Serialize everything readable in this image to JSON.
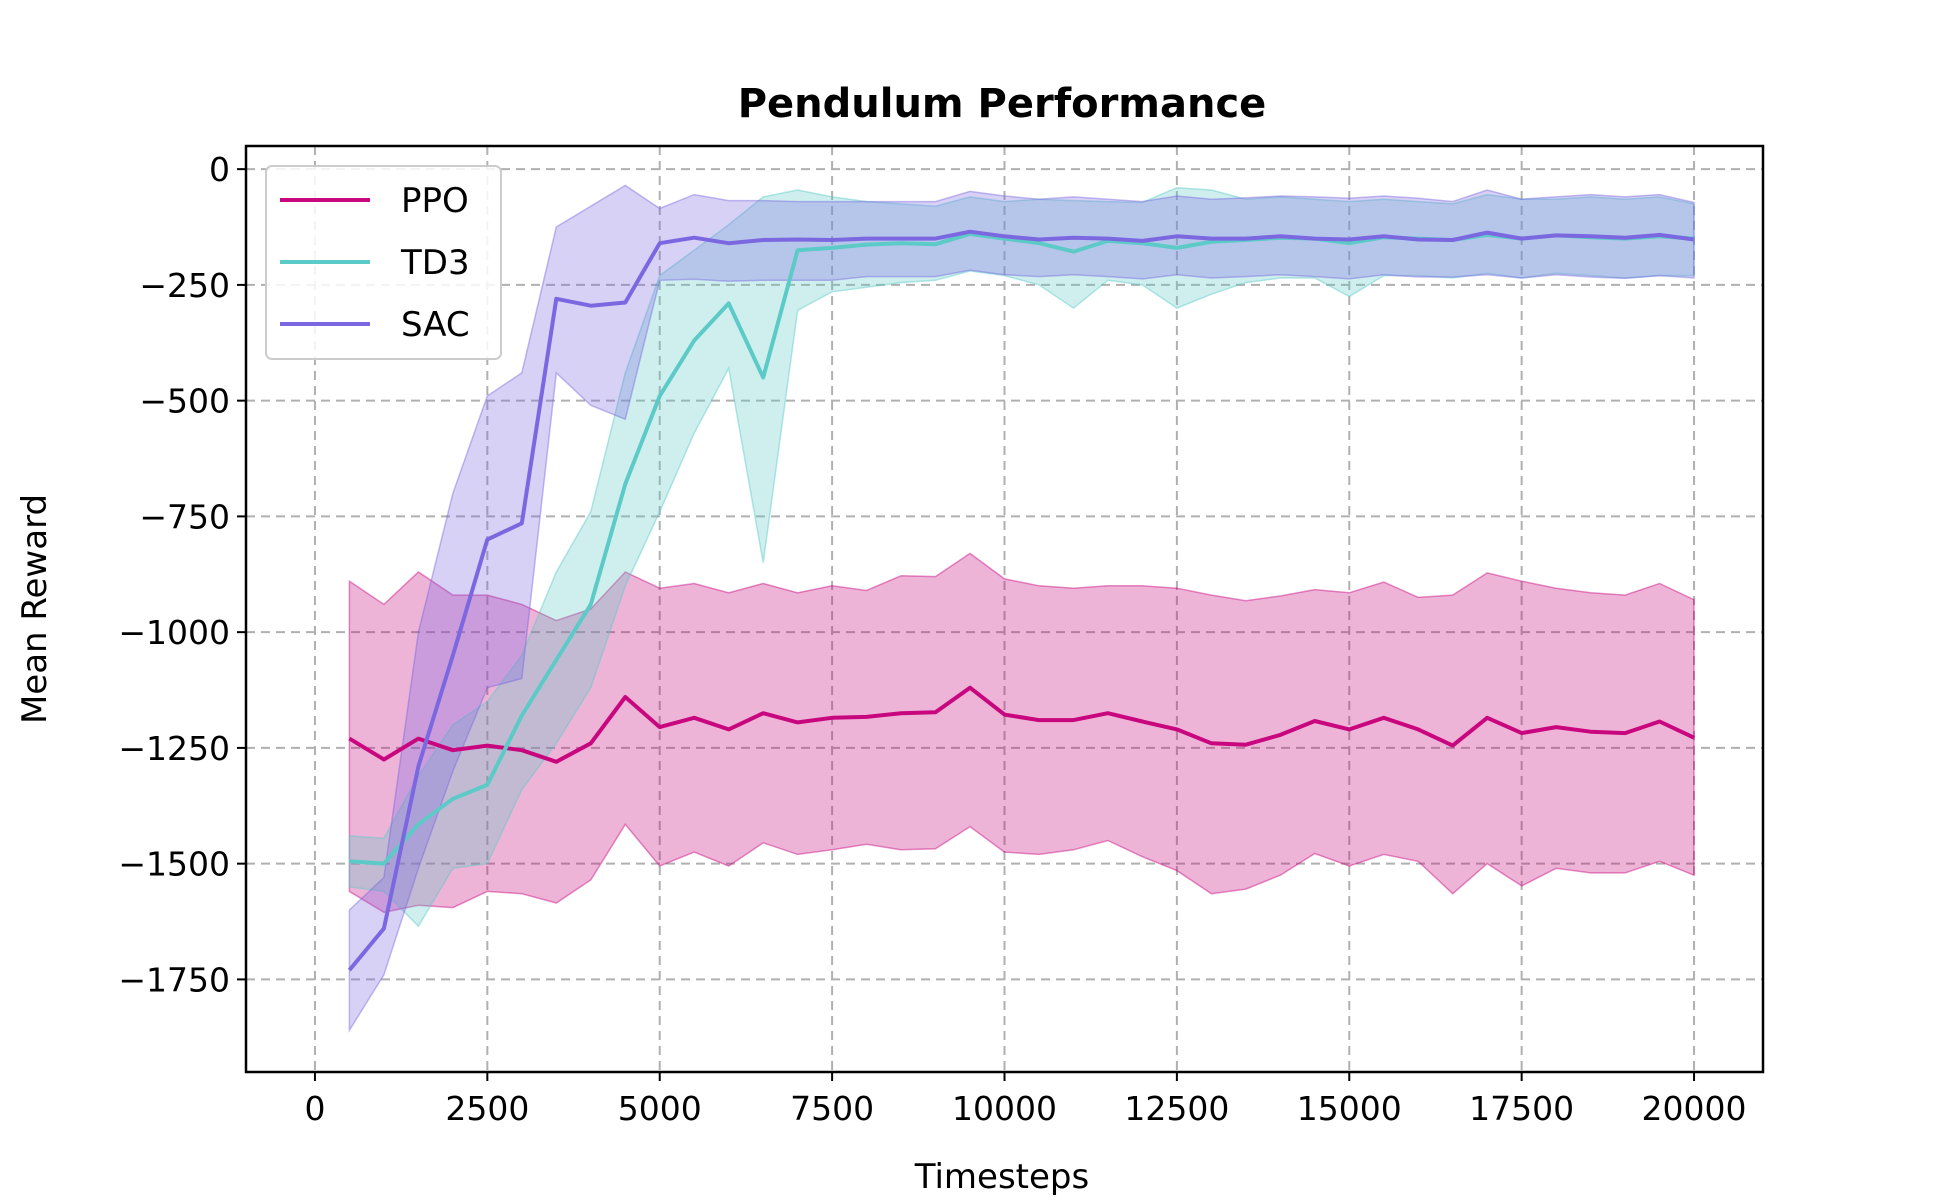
{
  "chart_data": {
    "type": "line",
    "title": "Pendulum Performance",
    "xlabel": "Timesteps",
    "ylabel": "Mean Reward",
    "xlim": [
      -1000,
      21000
    ],
    "ylim": [
      -1950,
      50
    ],
    "xticks": [
      0,
      2500,
      5000,
      7500,
      10000,
      12500,
      15000,
      17500,
      20000
    ],
    "xtick_labels": [
      "0",
      "2500",
      "5000",
      "7500",
      "10000",
      "12500",
      "15000",
      "17500",
      "20000"
    ],
    "yticks": [
      0,
      -250,
      -500,
      -750,
      -1000,
      -1250,
      -1500,
      -1750
    ],
    "ytick_labels": [
      "0",
      "−250",
      "−500",
      "−750",
      "−1000",
      "−1250",
      "−1500",
      "−1750"
    ],
    "grid": true,
    "legend_position": "top-left",
    "x": [
      500,
      1000,
      1500,
      2000,
      2500,
      3000,
      3500,
      4000,
      4500,
      5000,
      5500,
      6000,
      6500,
      7000,
      7500,
      8000,
      8500,
      9000,
      9500,
      10000,
      10500,
      11000,
      11500,
      12000,
      12500,
      13000,
      13500,
      14000,
      14500,
      15000,
      15500,
      16000,
      16500,
      17000,
      17500,
      18000,
      18500,
      19000,
      19500,
      20000
    ],
    "series": [
      {
        "name": "PPO",
        "color": "#c8077f",
        "values": [
          -1230,
          -1275,
          -1230,
          -1255,
          -1245,
          -1255,
          -1280,
          -1240,
          -1140,
          -1205,
          -1185,
          -1210,
          -1175,
          -1195,
          -1185,
          -1183,
          -1175,
          -1173,
          -1120,
          -1178,
          -1190,
          -1190,
          -1175,
          -1193,
          -1210,
          -1240,
          -1243,
          -1222,
          -1192,
          -1210,
          -1185,
          -1210,
          -1245,
          -1185,
          -1218,
          -1205,
          -1215,
          -1218,
          -1193,
          -1228
        ],
        "upper": [
          -890,
          -940,
          -870,
          -920,
          -920,
          -940,
          -975,
          -950,
          -870,
          -905,
          -895,
          -915,
          -895,
          -915,
          -900,
          -910,
          -878,
          -880,
          -830,
          -885,
          -900,
          -905,
          -900,
          -900,
          -905,
          -920,
          -932,
          -922,
          -908,
          -915,
          -892,
          -925,
          -920,
          -872,
          -890,
          -905,
          -915,
          -920,
          -895,
          -930
        ],
        "lower": [
          -1560,
          -1605,
          -1590,
          -1595,
          -1560,
          -1565,
          -1585,
          -1535,
          -1415,
          -1505,
          -1475,
          -1505,
          -1455,
          -1480,
          -1470,
          -1458,
          -1470,
          -1468,
          -1420,
          -1475,
          -1480,
          -1470,
          -1450,
          -1485,
          -1515,
          -1565,
          -1555,
          -1525,
          -1478,
          -1505,
          -1480,
          -1495,
          -1565,
          -1500,
          -1548,
          -1510,
          -1520,
          -1520,
          -1495,
          -1525
        ]
      },
      {
        "name": "TD3",
        "color": "#5ccac7",
        "values": [
          -1495,
          -1500,
          -1415,
          -1360,
          -1330,
          -1180,
          -1060,
          -940,
          -680,
          -490,
          -370,
          -290,
          -450,
          -175,
          -170,
          -163,
          -160,
          -162,
          -140,
          -150,
          -160,
          -178,
          -155,
          -160,
          -170,
          -157,
          -153,
          -148,
          -150,
          -160,
          -147,
          -150,
          -153,
          -142,
          -150,
          -143,
          -147,
          -150,
          -145,
          -150
        ],
        "upper": [
          -1440,
          -1445,
          -1310,
          -1200,
          -1150,
          -1050,
          -870,
          -740,
          -440,
          -230,
          -175,
          -120,
          -60,
          -45,
          -60,
          -70,
          -75,
          -80,
          -60,
          -70,
          -65,
          -68,
          -70,
          -72,
          -40,
          -45,
          -65,
          -60,
          -65,
          -70,
          -65,
          -70,
          -75,
          -55,
          -65,
          -65,
          -60,
          -65,
          -60,
          -75
        ],
        "lower": [
          -1550,
          -1560,
          -1635,
          -1510,
          -1500,
          -1340,
          -1240,
          -1120,
          -900,
          -740,
          -570,
          -430,
          -850,
          -305,
          -265,
          -255,
          -245,
          -240,
          -220,
          -230,
          -250,
          -300,
          -240,
          -250,
          -300,
          -270,
          -245,
          -235,
          -235,
          -275,
          -230,
          -230,
          -235,
          -225,
          -235,
          -225,
          -230,
          -235,
          -230,
          -230
        ]
      },
      {
        "name": "SAC",
        "color": "#7b68e0",
        "values": [
          -1730,
          -1640,
          -1290,
          -1050,
          -800,
          -765,
          -280,
          -295,
          -288,
          -160,
          -148,
          -160,
          -153,
          -152,
          -153,
          -150,
          -150,
          -150,
          -135,
          -145,
          -152,
          -148,
          -150,
          -155,
          -145,
          -150,
          -150,
          -145,
          -150,
          -152,
          -145,
          -152,
          -153,
          -137,
          -150,
          -143,
          -145,
          -148,
          -142,
          -152
        ],
        "upper": [
          -1600,
          -1530,
          -1000,
          -700,
          -490,
          -440,
          -125,
          -80,
          -35,
          -85,
          -55,
          -68,
          -68,
          -70,
          -70,
          -70,
          -70,
          -70,
          -48,
          -58,
          -65,
          -60,
          -65,
          -70,
          -58,
          -65,
          -62,
          -58,
          -60,
          -63,
          -58,
          -63,
          -70,
          -45,
          -65,
          -60,
          -55,
          -60,
          -55,
          -72
        ],
        "lower": [
          -1860,
          -1740,
          -1510,
          -1300,
          -1120,
          -1100,
          -440,
          -510,
          -540,
          -240,
          -238,
          -242,
          -240,
          -240,
          -240,
          -232,
          -232,
          -232,
          -218,
          -228,
          -232,
          -228,
          -232,
          -237,
          -228,
          -235,
          -232,
          -228,
          -232,
          -237,
          -228,
          -233,
          -233,
          -228,
          -235,
          -228,
          -233,
          -236,
          -230,
          -235
        ]
      }
    ]
  }
}
